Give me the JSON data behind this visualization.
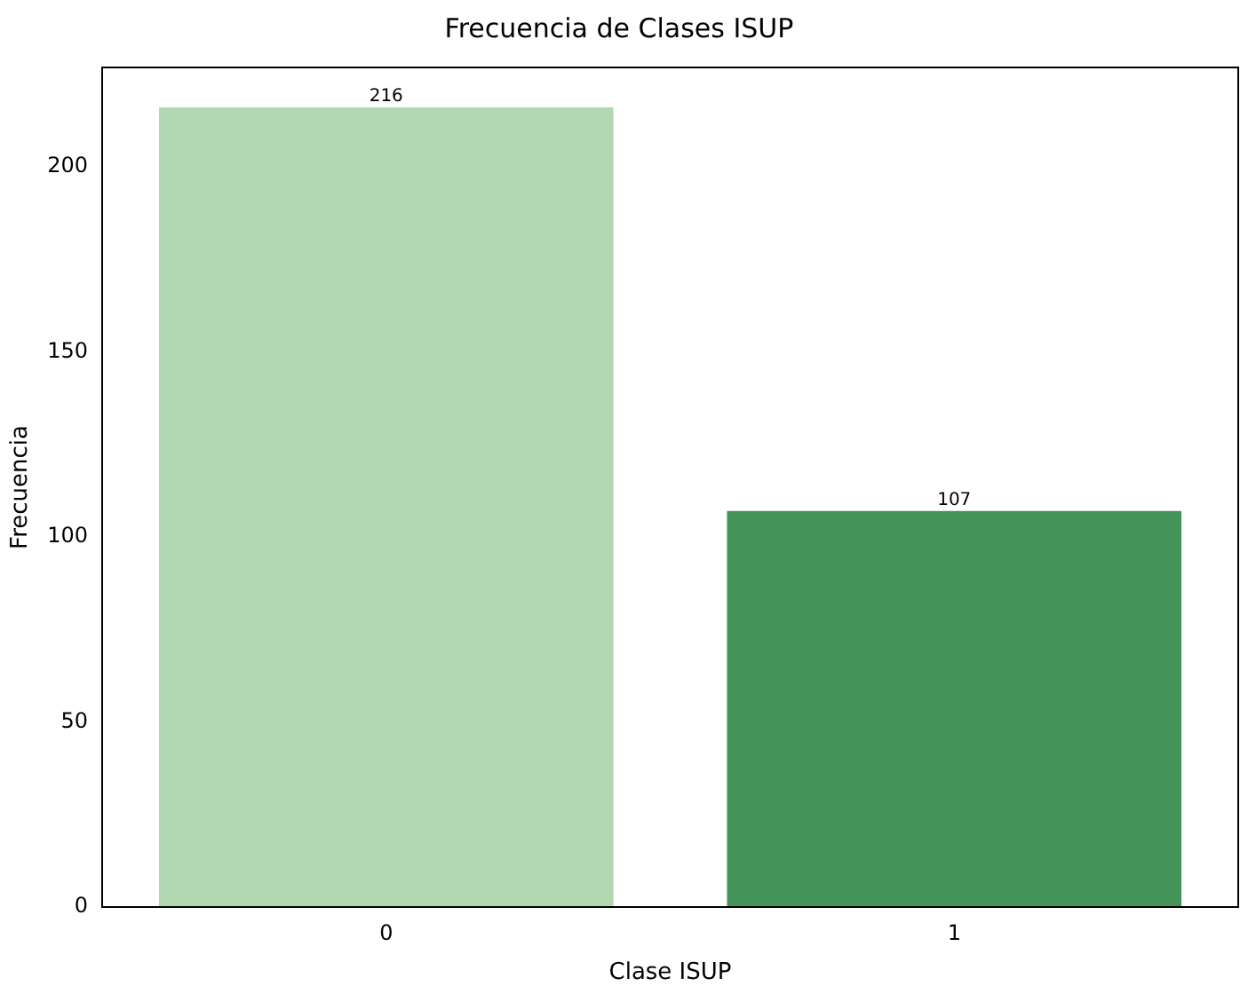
{
  "chart_data": {
    "type": "bar",
    "title": "Frecuencia de Clases ISUP",
    "xlabel": "Clase ISUP",
    "ylabel": "Frecuencia",
    "categories": [
      "0",
      "1"
    ],
    "values": [
      216,
      107
    ],
    "colors": [
      "#b3d7b1",
      "#44945a"
    ],
    "ylim": [
      0,
      226.8
    ],
    "yticks": [
      0,
      50,
      100,
      150,
      200
    ],
    "grid": false,
    "data_labels": true
  }
}
